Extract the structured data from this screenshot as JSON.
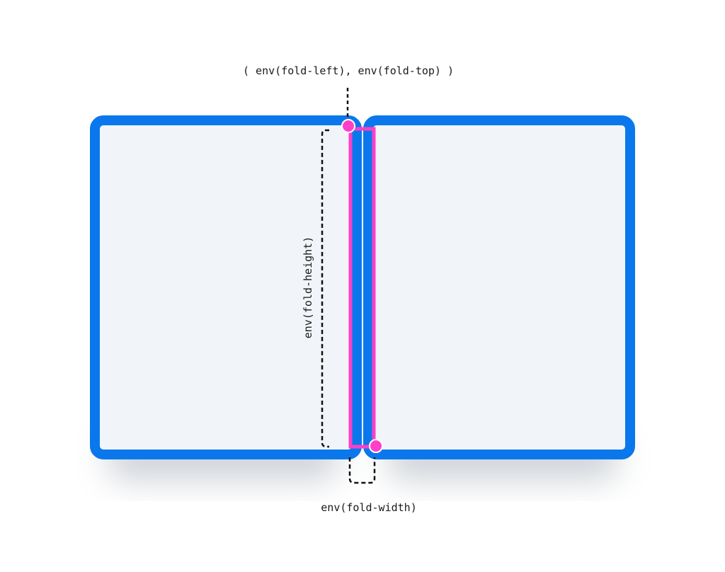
{
  "labels": {
    "fold_origin": "( env(fold-left), env(fold-top) )",
    "fold_height": "env(fold-height)",
    "fold_width": "env(fold-width)"
  },
  "colors": {
    "screen_border": "#0a78ec",
    "screen_fill": "#f1f5f9",
    "fold_outline": "#ff3fc8",
    "marker": "#ff3fc8",
    "guide": "#111111",
    "shadow": "#9aa3ad"
  }
}
